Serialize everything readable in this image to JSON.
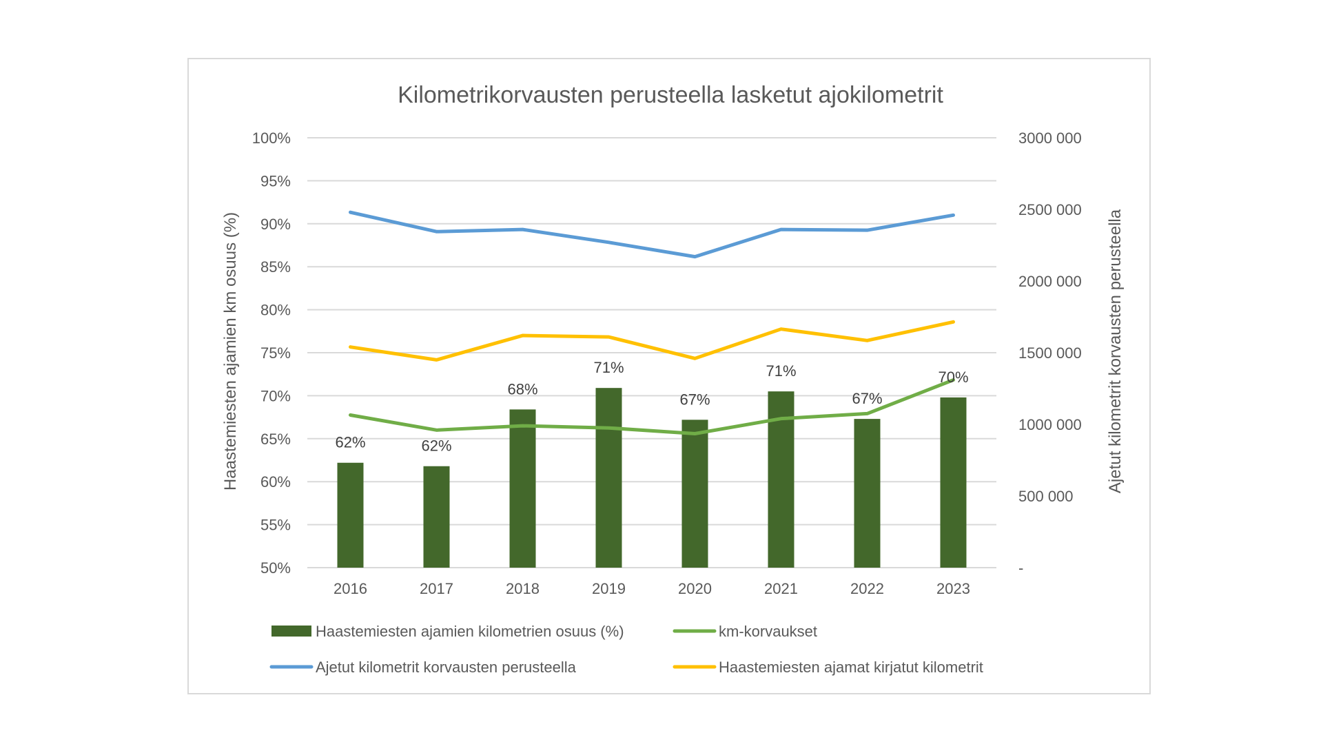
{
  "chart_data": {
    "type": "bar",
    "title": "Kilometrikorvausten perusteella lasketut ajokilometrit",
    "ylabel_left": "Haastemiesten ajamien km osuus (%)",
    "ylabel_right": "Ajetut kilometrit korvausten perusteella",
    "categories": [
      "2016",
      "2017",
      "2018",
      "2019",
      "2020",
      "2021",
      "2022",
      "2023"
    ],
    "ylim_left": [
      0.5,
      1.0
    ],
    "ylim_right": [
      0,
      3000000
    ],
    "yticks_left": [
      "50%",
      "55%",
      "60%",
      "65%",
      "70%",
      "75%",
      "80%",
      "85%",
      "90%",
      "95%",
      "100%"
    ],
    "yticks_right": [
      "-",
      "500 000",
      "1000 000",
      "1500 000",
      "2000 000",
      "2500 000",
      "3000 000"
    ],
    "grid": true,
    "legend_position": "bottom",
    "series": [
      {
        "name": "Haastemiesten ajamien kilometrien osuus (%)",
        "kind": "bar",
        "axis": "left",
        "color": "#43682b",
        "values": [
          0.622,
          0.618,
          0.684,
          0.709,
          0.672,
          0.705,
          0.673,
          0.698
        ],
        "labels": [
          "62%",
          "62%",
          "68%",
          "71%",
          "67%",
          "71%",
          "67%",
          "70%"
        ]
      },
      {
        "name": "km-korvaukset",
        "kind": "line",
        "axis": "right",
        "color": "#70ad47",
        "values": [
          1065000,
          960000,
          990000,
          975000,
          935000,
          1040000,
          1075000,
          1310000
        ]
      },
      {
        "name": "Ajetut kilometrit korvausten perusteella",
        "kind": "line",
        "axis": "right",
        "color": "#5b9bd5",
        "values": [
          2480000,
          2345000,
          2360000,
          2270000,
          2170000,
          2360000,
          2355000,
          2460000
        ]
      },
      {
        "name": "Haastemiesten ajamat kirjatut kilometrit",
        "kind": "line",
        "axis": "right",
        "color": "#ffc000",
        "values": [
          1540000,
          1450000,
          1620000,
          1610000,
          1460000,
          1665000,
          1585000,
          1715000
        ]
      }
    ]
  }
}
